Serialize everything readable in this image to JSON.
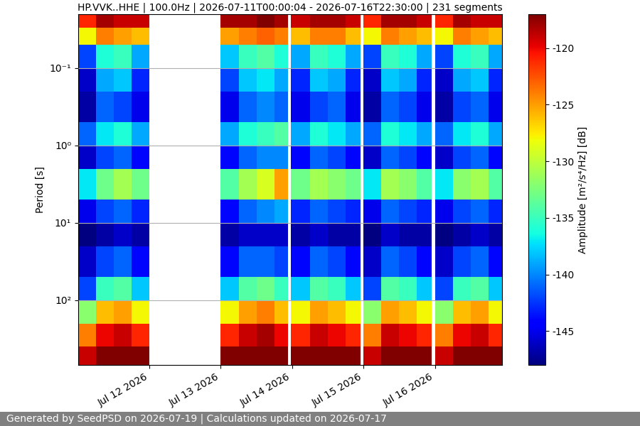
{
  "chart_data": {
    "type": "heatmap",
    "title": "HP.VVK..HHE | 100.0Hz | 2026-07-11T00:00:04 - 2026-07-16T22:30:00 | 231 segments",
    "y_label": "Period [s]",
    "footer": "Generated by SeedPSD on 2026-07-19 | Calculations updated on 2026-07-17",
    "log": "y",
    "grid": true,
    "xlim": [
      "2026-07-11T00:00:04",
      "2026-07-16T22:30:00"
    ],
    "xticks": [
      {
        "value": "2026-07-12T00:00:00",
        "label": "Jul 12 2026"
      },
      {
        "value": "2026-07-13T00:00:00",
        "label": "Jul 13 2026"
      },
      {
        "value": "2026-07-14T00:00:00",
        "label": "Jul 14 2026"
      },
      {
        "value": "2026-07-15T00:00:00",
        "label": "Jul 15 2026"
      },
      {
        "value": "2026-07-16T00:00:00",
        "label": "Jul 16 2026"
      }
    ],
    "ylim": [
      690,
      0.02
    ],
    "yticks": [
      {
        "value": 0.1,
        "label": "10⁻¹"
      },
      {
        "value": 1,
        "label": "10⁰"
      },
      {
        "value": 10,
        "label": "10¹"
      },
      {
        "value": 100,
        "label": "10²"
      }
    ],
    "time_edges": [
      "2026-07-11T00:00:04",
      "2026-07-11T06:00:00",
      "2026-07-11T12:00:00",
      "2026-07-11T18:00:00",
      "2026-07-12T00:00:00",
      "2026-07-13T00:00:00",
      "2026-07-13T06:00:00",
      "2026-07-13T12:00:00",
      "2026-07-13T18:00:00",
      "2026-07-13T22:30:00",
      "2026-07-13T23:30:00",
      "2026-07-14T06:00:00",
      "2026-07-14T12:00:00",
      "2026-07-14T18:00:00",
      "2026-07-14T23:00:00",
      "2026-07-15T00:00:00",
      "2026-07-15T06:00:00",
      "2026-07-15T12:00:00",
      "2026-07-15T18:00:00",
      "2026-07-15T23:00:00",
      "2026-07-16T00:00:00",
      "2026-07-16T06:00:00",
      "2026-07-16T12:00:00",
      "2026-07-16T18:00:00",
      "2026-07-16T22:30:00"
    ],
    "period_edges": [
      0.02,
      0.03,
      0.05,
      0.1,
      0.2,
      0.5,
      1,
      2,
      5,
      10,
      20,
      50,
      100,
      200,
      400,
      690
    ],
    "cells": [
      [
        -121,
        -118,
        -119,
        -119,
        null,
        -118,
        -118,
        -117,
        -118,
        null,
        -119,
        -118,
        -118,
        -119,
        null,
        -121,
        -118,
        -118,
        -119,
        null,
        -121,
        -118,
        -119,
        -119
      ],
      [
        -128,
        -124,
        -125,
        -126,
        null,
        -125,
        -124,
        -123,
        -124,
        null,
        -126,
        -124,
        -124,
        -126,
        null,
        -128,
        -124,
        -125,
        -126,
        null,
        -128,
        -124,
        -125,
        -126
      ],
      [
        -142,
        -136,
        -135,
        -139,
        null,
        -138,
        -135,
        -134,
        -136,
        null,
        -139,
        -135,
        -136,
        -139,
        null,
        -142,
        -135,
        -136,
        -139,
        null,
        -142,
        -136,
        -135,
        -139
      ],
      [
        -146,
        -139,
        -138,
        -143,
        null,
        -142,
        -138,
        -137,
        -139,
        null,
        -143,
        -138,
        -139,
        -143,
        null,
        -146,
        -138,
        -139,
        -143,
        null,
        -146,
        -139,
        -138,
        -143
      ],
      [
        -147,
        -141,
        -142,
        -145,
        null,
        -145,
        -141,
        -140,
        -141,
        null,
        -145,
        -142,
        -141,
        -145,
        null,
        -147,
        -141,
        -142,
        -145,
        null,
        -147,
        -142,
        -141,
        -145
      ],
      [
        -141,
        -137,
        -136,
        -139,
        null,
        -139,
        -136,
        -135,
        -134,
        null,
        -139,
        -136,
        -137,
        -139,
        null,
        -141,
        -136,
        -137,
        -139,
        null,
        -141,
        -137,
        -136,
        -139
      ],
      [
        -146,
        -142,
        -141,
        -144,
        null,
        -144,
        -141,
        -140,
        -140,
        null,
        -144,
        -141,
        -142,
        -144,
        null,
        -146,
        -141,
        -142,
        -144,
        null,
        -146,
        -142,
        -141,
        -144
      ],
      [
        -137,
        -133,
        -131,
        -133,
        null,
        -134,
        -131,
        -129,
        -125,
        null,
        -133,
        -131,
        -132,
        -133,
        null,
        -137,
        -131,
        -132,
        -134,
        null,
        -137,
        -132,
        -131,
        -134
      ],
      [
        -145,
        -142,
        -141,
        -143,
        null,
        -144,
        -141,
        -140,
        -139,
        null,
        -143,
        -141,
        -142,
        -143,
        null,
        -145,
        -141,
        -142,
        -143,
        null,
        -145,
        -142,
        -141,
        -143
      ],
      [
        -148,
        -147,
        -146,
        -147,
        null,
        -147,
        -146,
        -146,
        -146,
        null,
        -147,
        -146,
        -147,
        -147,
        null,
        -148,
        -146,
        -147,
        -147,
        null,
        -148,
        -147,
        -146,
        -147
      ],
      [
        -146,
        -142,
        -141,
        -144,
        null,
        -144,
        -141,
        -141,
        -142,
        null,
        -144,
        -141,
        -142,
        -144,
        null,
        -146,
        -141,
        -142,
        -144,
        null,
        -146,
        -142,
        -141,
        -144
      ],
      [
        -142,
        -135,
        -134,
        -138,
        null,
        -138,
        -134,
        -133,
        -135,
        null,
        -138,
        -134,
        -135,
        -138,
        null,
        -142,
        -134,
        -135,
        -138,
        null,
        -142,
        -135,
        -134,
        -138
      ],
      [
        -132,
        -126,
        -125,
        -128,
        null,
        -128,
        -125,
        -124,
        -126,
        null,
        -128,
        -125,
        -126,
        -128,
        null,
        -132,
        -125,
        -126,
        -128,
        null,
        -132,
        -126,
        -125,
        -128
      ],
      [
        -124,
        -120,
        -119,
        -121,
        null,
        -121,
        -119,
        -118,
        -120,
        null,
        -121,
        -119,
        -120,
        -121,
        null,
        -124,
        -119,
        -120,
        -121,
        null,
        -124,
        -120,
        -119,
        -121
      ],
      [
        -119,
        -117,
        -116,
        -117,
        null,
        -117,
        -116,
        -116,
        -117,
        null,
        -117,
        -116,
        -117,
        -117,
        null,
        -119,
        -116,
        -117,
        -117,
        null,
        -119,
        -117,
        -116,
        -117
      ]
    ],
    "colorbar": {
      "label": "Amplitude [m²/s⁴/Hz] [dB]",
      "range": [
        -148,
        -117
      ],
      "ticks": [
        -145,
        -140,
        -135,
        -130,
        -125,
        -120
      ]
    }
  }
}
